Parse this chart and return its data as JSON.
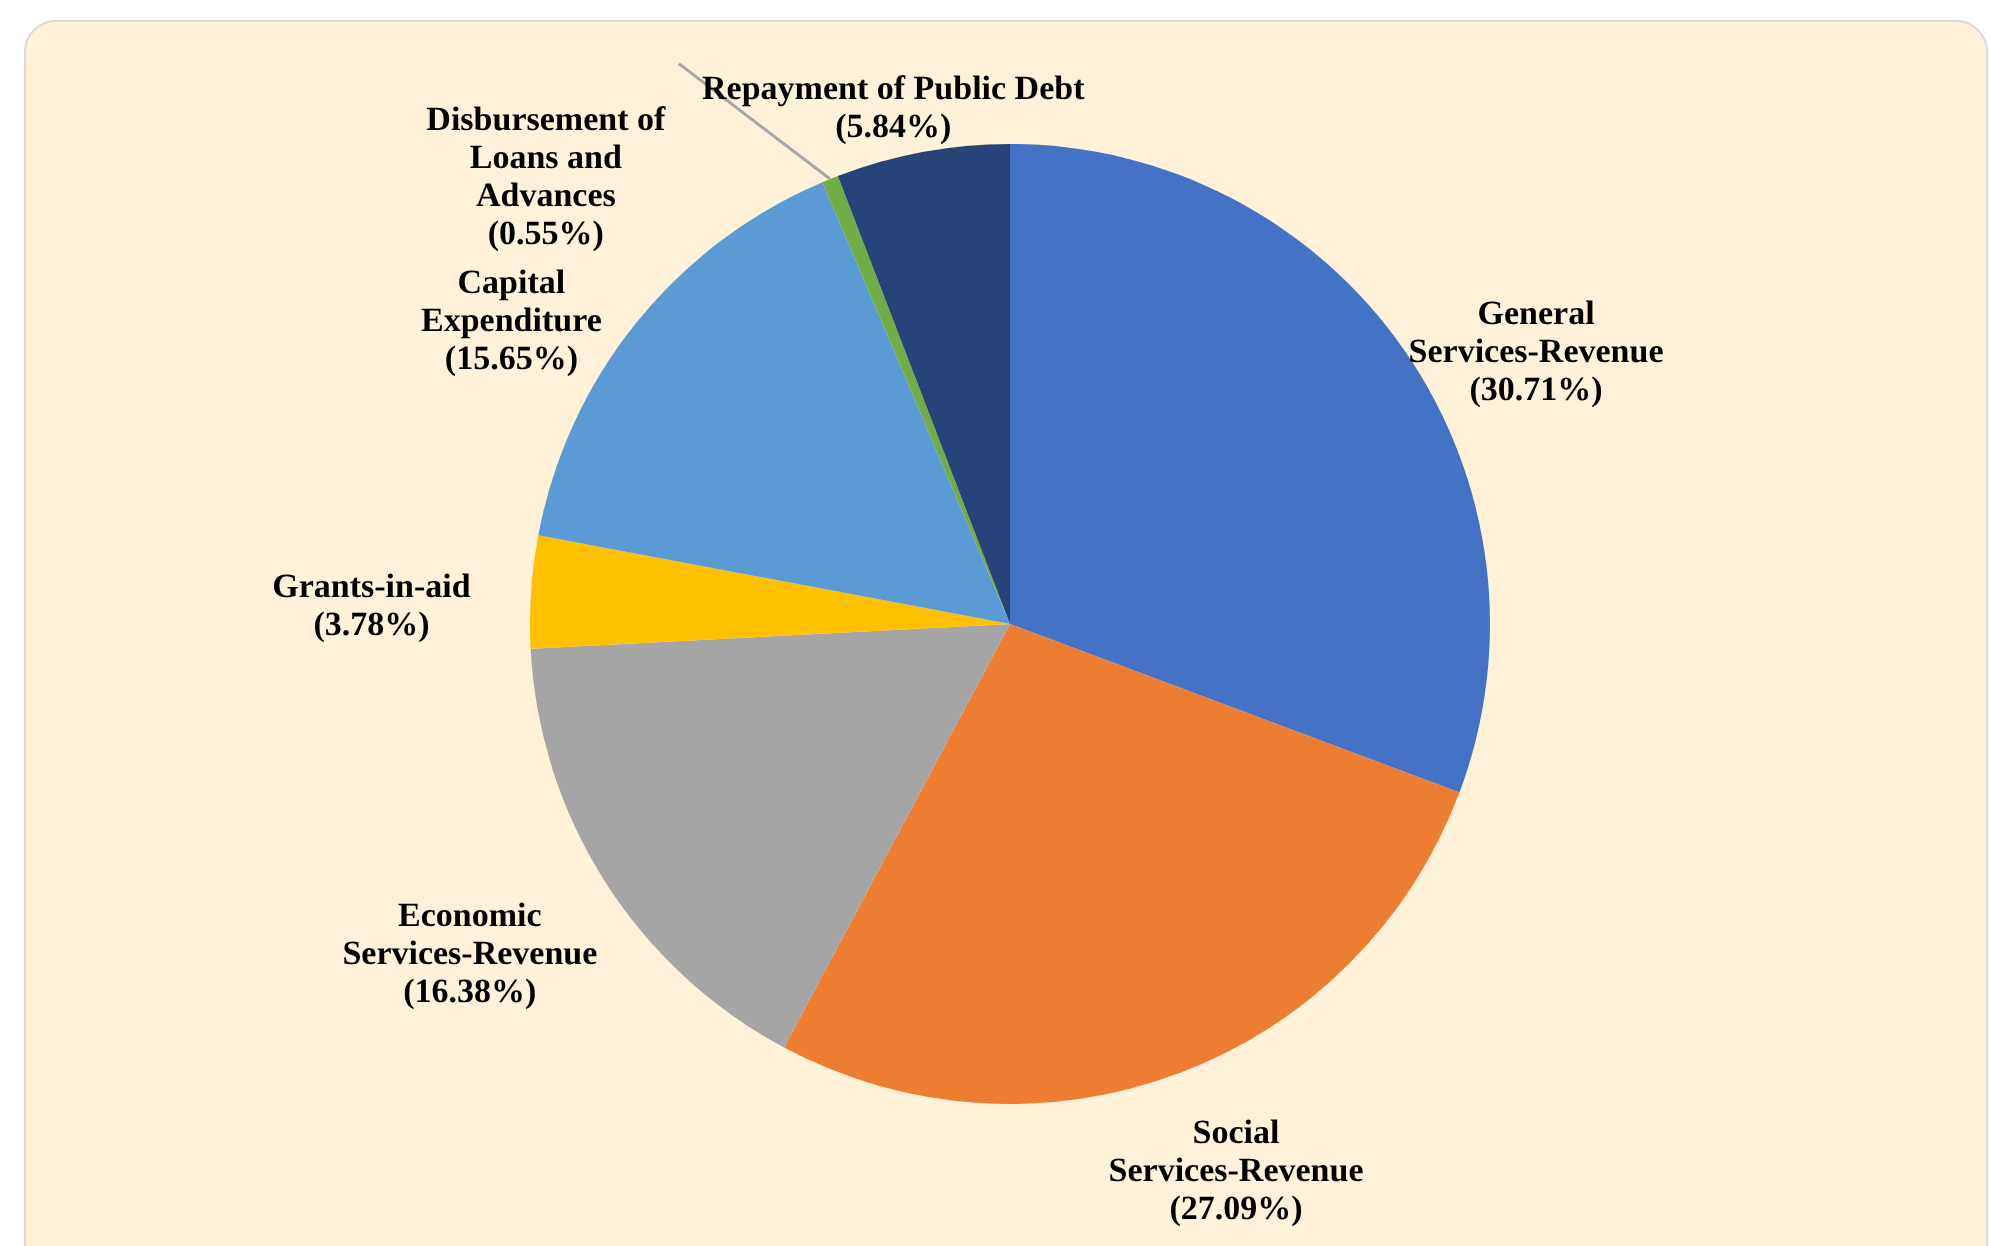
{
  "chart_data": {
    "type": "pie",
    "categories": [
      "General Services-Revenue",
      "Social Services-Revenue",
      "Economic Services-Revenue",
      "Grants-in-aid",
      "Capital Expenditure",
      "Disbursement of Loans and Advances",
      "Repayment of Public Debt"
    ],
    "values": [
      30.71,
      27.09,
      16.38,
      3.78,
      15.65,
      0.55,
      5.84
    ],
    "value_labels": [
      "(30.71%)",
      "(27.09%)",
      "(16.38%)",
      "(3.78%)",
      "(15.65%)",
      "(0.55%)",
      "(5.84%)"
    ],
    "colors": [
      "#4472c4",
      "#ed7d31",
      "#a5a5a5",
      "#ffc000",
      "#5b9bd5",
      "#70ad47",
      "#264478"
    ]
  }
}
